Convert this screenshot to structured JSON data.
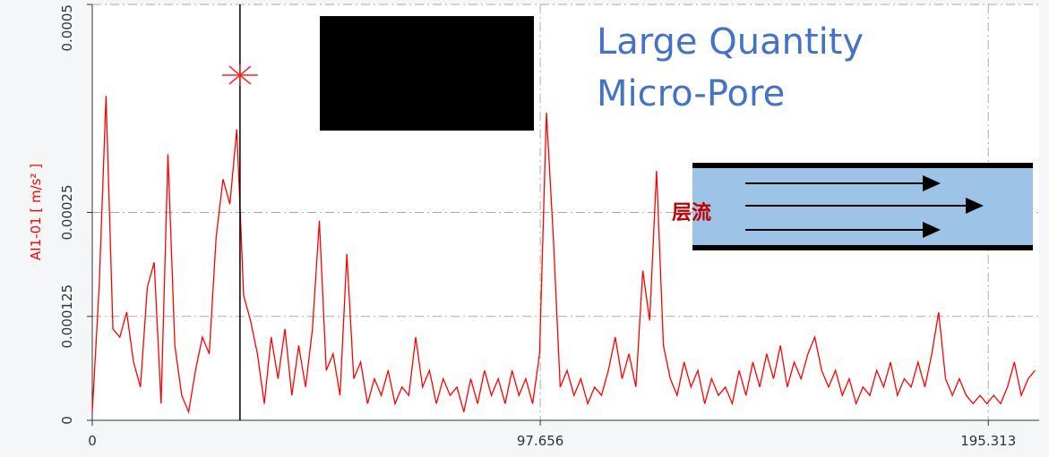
{
  "chart_data": {
    "type": "line",
    "y_label": "AI1-01 [ m/s² ]",
    "annotations": [
      "Large Quantity",
      "Micro-Pore",
      "层流"
    ],
    "xlim": [
      0,
      206.4
    ],
    "ylim": [
      0,
      0.0005
    ],
    "xticks": [
      0,
      97.656,
      195.313
    ],
    "yticks": [
      0,
      0.000125,
      0.00025,
      0.0005
    ],
    "grid": true,
    "cursor": {
      "x": 32.2,
      "y": 0.000415
    },
    "series": [
      {
        "color": "#ff0000",
        "x": [
          0,
          1.5,
          3,
          4.5,
          6,
          7.5,
          9,
          10.5,
          12,
          13.5,
          15,
          16.5,
          18,
          19.5,
          21,
          22.5,
          24,
          25.5,
          27,
          28.5,
          30,
          31.5,
          33,
          34.5,
          36,
          37.5,
          39,
          40.5,
          42,
          43.5,
          45,
          46.5,
          48,
          49.5,
          51,
          52.5,
          54,
          55.5,
          57,
          58.5,
          60,
          61.5,
          63,
          64.5,
          66,
          67.5,
          69,
          70.5,
          72,
          73.5,
          75,
          76.5,
          78,
          79.5,
          81,
          82.5,
          84,
          85.5,
          87,
          88.5,
          90,
          91.5,
          93,
          94.5,
          96,
          97.5,
          99,
          100.5,
          102,
          103.5,
          105,
          106.5,
          108,
          109.5,
          111,
          112.5,
          114,
          115.5,
          117,
          118.5,
          120,
          121.5,
          123,
          124.5,
          126,
          127.5,
          129,
          130.5,
          132,
          133.5,
          135,
          136.5,
          138,
          139.5,
          141,
          142.5,
          144,
          145.5,
          147,
          148.5,
          150,
          151.5,
          153,
          154.5,
          156,
          157.5,
          159,
          160.5,
          162,
          163.5,
          165,
          166.5,
          168,
          169.5,
          171,
          172.5,
          174,
          175.5,
          177,
          178.5,
          180,
          181.5,
          183,
          184.5,
          186,
          187.5,
          189,
          190.5,
          192,
          193.5,
          195,
          196.5,
          198,
          199.5,
          201,
          202.5,
          204,
          205.5
        ],
        "values": [
          1e-05,
          0.00016,
          0.00039,
          0.00011,
          0.0001,
          0.00013,
          7e-05,
          4e-05,
          0.00016,
          0.00019,
          2e-05,
          0.00032,
          9e-05,
          3e-05,
          1e-05,
          6e-05,
          0.0001,
          8e-05,
          0.00022,
          0.00029,
          0.00026,
          0.00035,
          0.00015,
          0.00012,
          8e-05,
          2e-05,
          0.0001,
          5e-05,
          0.00011,
          3e-05,
          9e-05,
          4e-05,
          0.00011,
          0.00024,
          6e-05,
          8e-05,
          3e-05,
          0.0002,
          5e-05,
          7e-05,
          2e-05,
          5e-05,
          3e-05,
          6e-05,
          2e-05,
          4e-05,
          3e-05,
          0.0001,
          4e-05,
          6e-05,
          2e-05,
          5e-05,
          3e-05,
          4e-05,
          1e-05,
          5e-05,
          2e-05,
          6e-05,
          3e-05,
          5e-05,
          2e-05,
          6e-05,
          3e-05,
          5e-05,
          2e-05,
          8e-05,
          0.00037,
          0.00022,
          4e-05,
          6e-05,
          3e-05,
          5e-05,
          2e-05,
          4e-05,
          3e-05,
          6e-05,
          0.0001,
          5e-05,
          8e-05,
          4e-05,
          0.00018,
          0.00012,
          0.0003,
          9e-05,
          5e-05,
          3e-05,
          7e-05,
          4e-05,
          6e-05,
          2e-05,
          5e-05,
          3e-05,
          4e-05,
          2e-05,
          6e-05,
          3e-05,
          7e-05,
          4e-05,
          8e-05,
          5e-05,
          9e-05,
          4e-05,
          7e-05,
          5e-05,
          8e-05,
          0.0001,
          6e-05,
          4e-05,
          6e-05,
          3e-05,
          5e-05,
          2e-05,
          4e-05,
          3e-05,
          6e-05,
          4e-05,
          7e-05,
          3e-05,
          5e-05,
          4e-05,
          7e-05,
          4e-05,
          8e-05,
          0.00013,
          5e-05,
          3e-05,
          5e-05,
          3e-05,
          2e-05,
          3e-05,
          2e-05,
          3e-05,
          2e-05,
          4e-05,
          7e-05,
          3e-05,
          5e-05,
          6e-05
        ]
      }
    ]
  }
}
